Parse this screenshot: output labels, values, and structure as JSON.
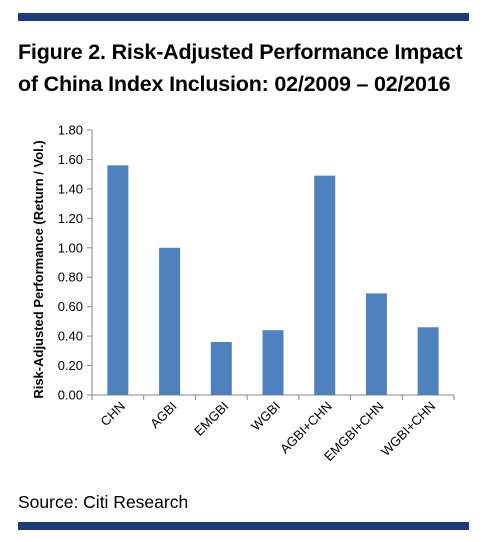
{
  "colors": {
    "rule": "#1f3c7a",
    "bar": "#4f81bd",
    "axis": "#868686"
  },
  "title": {
    "line1": "Figure 2. Risk-Adjusted Performance Impact",
    "line2": "of China Index Inclusion: 02/2009 – 02/2016"
  },
  "source": "Source: Citi Research",
  "chart_data": {
    "type": "bar",
    "categories": [
      "CHN",
      "AGBI",
      "EMGBI",
      "WGBI",
      "AGBI+CHN",
      "EMGBI+CHN",
      "WGBI+CHN"
    ],
    "values": [
      1.56,
      1.0,
      0.36,
      0.44,
      1.49,
      0.69,
      0.46
    ],
    "ylabel": "Risk-Adjusted Performance (Return / Vol.)",
    "ylim": [
      0,
      1.8
    ],
    "yticks": [
      "0.00",
      "0.20",
      "0.40",
      "0.60",
      "0.80",
      "1.00",
      "1.20",
      "1.40",
      "1.60",
      "1.80"
    ],
    "grid": false
  }
}
